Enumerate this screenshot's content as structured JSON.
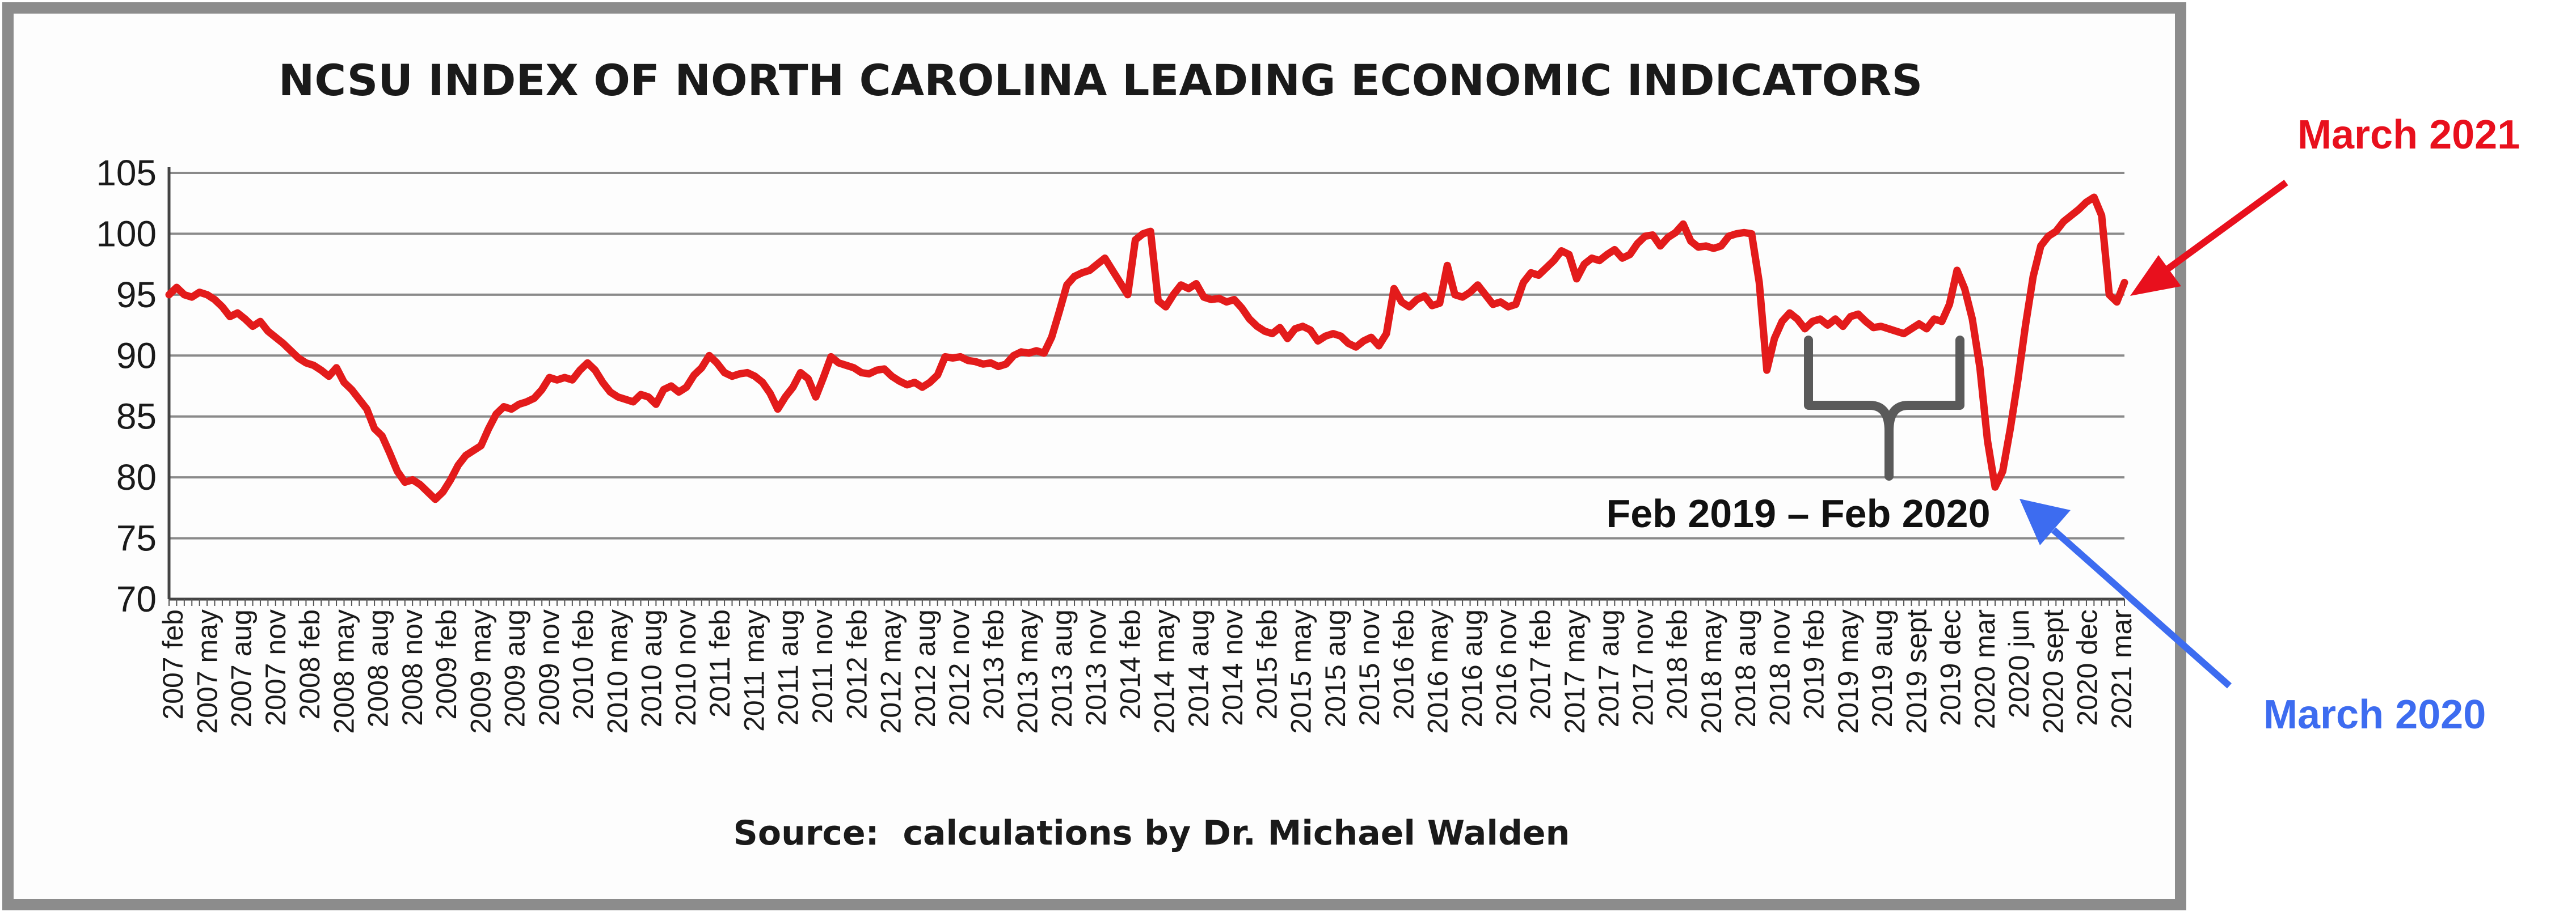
{
  "chart_data": {
    "type": "line",
    "title": "NCSU INDEX OF NORTH CAROLINA LEADING ECONOMIC INDICATORS",
    "source": "Source:  calculations by Dr. Michael Walden",
    "xlabel": "",
    "ylabel": "",
    "ylim": [
      70,
      105
    ],
    "yticks": [
      105,
      100,
      95,
      90,
      85,
      80,
      75,
      70
    ],
    "grid": true,
    "legend": "none",
    "line_color": "#e31b1b",
    "x_start": "2007 feb",
    "x_end": "2021 mar",
    "xtick_labels": [
      "2007 feb",
      "2007 may",
      "2007 aug",
      "2007 nov",
      "2008 feb",
      "2008 may",
      "2008 aug",
      "2008 nov",
      "2009 feb",
      "2009 may",
      "2009 aug",
      "2009 nov",
      "2010 feb",
      "2010 may",
      "2010 aug",
      "2010 nov",
      "2011 feb",
      "2011 may",
      "2011 aug",
      "2011 nov",
      "2012 feb",
      "2012 may",
      "2012 aug",
      "2012 nov",
      "2013 feb",
      "2013 may",
      "2013 aug",
      "2013 nov",
      "2014 feb",
      "2014 may",
      "2014 aug",
      "2014 nov",
      "2015 feb",
      "2015 may",
      "2015 aug",
      "2015 nov",
      "2016 feb",
      "2016 may",
      "2016 aug",
      "2016 nov",
      "2017 feb",
      "2017 may",
      "2017 aug",
      "2017 nov",
      "2018 feb",
      "2018 may",
      "2018 aug",
      "2018 nov",
      "2019 feb",
      "2019 may",
      "2019 aug",
      "2019 sept",
      "2019 dec",
      "2020 mar",
      "2020 jun",
      "2020 sept",
      "2020 dec",
      "2021 mar"
    ],
    "series": [
      {
        "values": [
          95.0,
          95.6,
          95.0,
          94.8,
          95.2,
          95.0,
          94.6,
          94.0,
          93.2,
          93.5,
          93.0,
          92.4,
          92.8,
          92.0,
          91.5,
          91.0,
          90.4,
          89.8,
          89.4,
          89.2,
          88.8,
          88.3,
          89.0,
          87.8,
          87.2,
          86.4,
          85.6,
          84.0,
          83.4,
          82.0,
          80.5,
          79.6,
          79.8,
          79.4,
          78.8,
          78.2,
          78.8,
          79.8,
          81.0,
          81.8,
          82.2,
          82.6,
          84.0,
          85.2,
          85.8,
          85.6,
          86.0,
          86.2,
          86.5,
          87.2,
          88.2,
          88.0,
          88.2,
          88.0,
          88.8,
          89.4,
          88.8,
          87.8,
          87.0,
          86.6,
          86.4,
          86.2,
          86.8,
          86.6,
          86.0,
          87.2,
          87.5,
          87.0,
          87.4,
          88.4,
          89.0,
          90.0,
          89.4,
          88.6,
          88.3,
          88.5,
          88.6,
          88.3,
          87.8,
          86.9,
          85.6,
          86.6,
          87.4,
          88.6,
          88.1,
          86.6,
          88.2,
          89.9,
          89.4,
          89.2,
          89.0,
          88.6,
          88.5,
          88.8,
          88.9,
          88.3,
          87.9,
          87.6,
          87.8,
          87.4,
          87.8,
          88.4,
          89.9,
          89.8,
          89.9,
          89.6,
          89.5,
          89.3,
          89.4,
          89.1,
          89.3,
          90.0,
          90.3,
          90.2,
          90.4,
          90.2,
          91.5,
          93.6,
          95.8,
          96.5,
          96.8,
          97.0,
          97.5,
          98.0,
          97.0,
          96.0,
          95.0,
          99.5,
          100.0,
          100.2,
          94.5,
          94.0,
          95.0,
          95.8,
          95.5,
          95.9,
          94.8,
          94.6,
          94.7,
          94.4,
          94.6,
          93.9,
          93.0,
          92.4,
          92.0,
          91.8,
          92.3,
          91.4,
          92.2,
          92.4,
          92.1,
          91.2,
          91.6,
          91.8,
          91.6,
          91.0,
          90.7,
          91.2,
          91.5,
          90.8,
          91.8,
          95.5,
          94.4,
          94.0,
          94.6,
          94.9,
          94.1,
          94.3,
          97.4,
          95.0,
          94.8,
          95.2,
          95.8,
          95.0,
          94.2,
          94.4,
          94.0,
          94.2,
          96.0,
          96.8,
          96.6,
          97.2,
          97.8,
          98.6,
          98.3,
          96.3,
          97.5,
          98.0,
          97.8,
          98.3,
          98.7,
          98.0,
          98.3,
          99.2,
          99.8,
          99.9,
          99.0,
          99.7,
          100.1,
          100.8,
          99.4,
          98.9,
          99.0,
          98.8,
          99.0,
          99.8,
          100.0,
          100.1,
          100.0,
          96.0,
          88.8,
          91.4,
          92.8,
          93.5,
          93.0,
          92.2,
          92.8,
          93.0,
          92.5,
          93.0,
          92.4,
          93.2,
          93.4,
          92.8,
          92.3,
          92.4,
          92.2,
          92.0,
          91.8,
          92.2,
          92.6,
          92.2,
          93.0,
          92.8,
          94.2,
          97.0,
          95.5,
          93.0,
          89.0,
          83.0,
          79.2,
          80.5,
          84.0,
          88.0,
          92.5,
          96.5,
          99.0,
          99.8,
          100.2,
          101.0,
          101.5,
          102.0,
          102.6,
          103.0,
          101.5,
          95.0,
          94.4,
          96.0
        ]
      }
    ]
  },
  "annotations": {
    "march_2021_label": "March 2021",
    "march_2021_color": "#e8101d",
    "march_2020_label": "March 2020",
    "march_2020_color": "#3d6cf0",
    "bracket_label": "Feb 2019 – Feb 2020",
    "bracket_color": "#555555"
  }
}
